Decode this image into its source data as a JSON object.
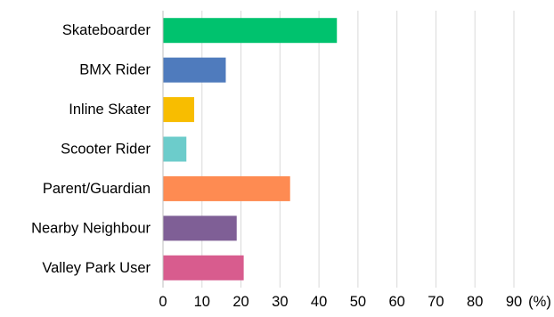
{
  "chart_data": {
    "type": "bar",
    "orientation": "horizontal",
    "title": "",
    "xlabel": "",
    "ylabel": "",
    "categories": [
      "Skateboarder",
      "BMX Rider",
      "Inline Skater",
      "Scooter Rider",
      "Parent/Guardian",
      "Nearby Neighbour",
      "Valley Park User"
    ],
    "values": [
      44.6,
      16.1,
      8.0,
      6.0,
      32.6,
      18.9,
      20.7
    ],
    "colors": [
      "#00c26e",
      "#4f7bbd",
      "#f8bd00",
      "#6ccccb",
      "#fe8b52",
      "#7f5f96",
      "#d85c8e"
    ],
    "xlim": [
      0,
      90
    ],
    "x_ticks": [
      0,
      10,
      20,
      30,
      40,
      50,
      60,
      70,
      80,
      90
    ],
    "unit_label": "(%)",
    "grid": true
  }
}
